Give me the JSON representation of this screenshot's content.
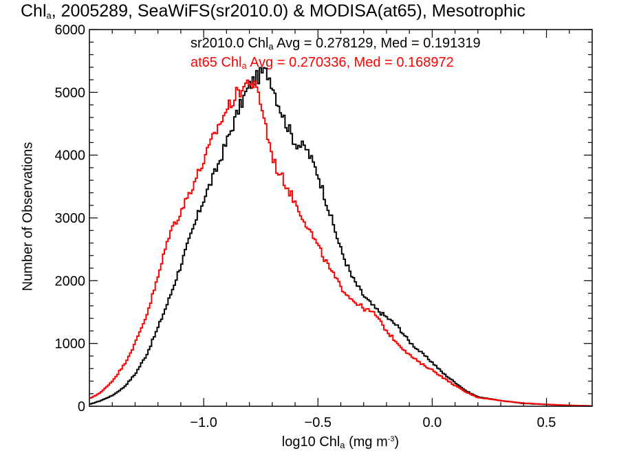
{
  "chart_data": {
    "type": "line",
    "title_parts": [
      "Chl",
      "a",
      ", 2005289, SeaWiFS(sr2010.0) & MODISA(at65), Mesotrophic"
    ],
    "xlabel_parts": [
      "log10 Chl",
      "a",
      " (mg m",
      "-3",
      ")"
    ],
    "ylabel": "Number of Observations",
    "xlim": [
      -1.5,
      0.7
    ],
    "ylim": [
      0,
      6000
    ],
    "x_ticks": [
      -1.0,
      -0.5,
      0.0,
      0.5
    ],
    "x_tick_labels": [
      "−1.0",
      "−0.5",
      "0.0",
      "0.5"
    ],
    "y_ticks": [
      0,
      1000,
      2000,
      3000,
      4000,
      5000,
      6000
    ],
    "y_tick_labels": [
      "0",
      "1000",
      "2000",
      "3000",
      "4000",
      "5000",
      "6000"
    ],
    "step": true,
    "grid": false,
    "x": [
      -1.5,
      -1.45,
      -1.4,
      -1.35,
      -1.3,
      -1.25,
      -1.2,
      -1.15,
      -1.1,
      -1.05,
      -1.0,
      -0.95,
      -0.9,
      -0.85,
      -0.82,
      -0.8,
      -0.78,
      -0.76,
      -0.74,
      -0.72,
      -0.7,
      -0.68,
      -0.65,
      -0.6,
      -0.55,
      -0.5,
      -0.45,
      -0.4,
      -0.35,
      -0.3,
      -0.25,
      -0.2,
      -0.15,
      -0.1,
      -0.05,
      0.0,
      0.05,
      0.1,
      0.15,
      0.2,
      0.3,
      0.4,
      0.5,
      0.6,
      0.7
    ],
    "series": [
      {
        "name_parts": [
          "sr2010.0 Chl",
          "a",
          " Avg = 0.278129, Med = 0.191319"
        ],
        "color": "#000000",
        "values": [
          30,
          90,
          170,
          300,
          510,
          820,
          1250,
          1720,
          2250,
          2780,
          3300,
          3720,
          4200,
          4700,
          4950,
          5100,
          5200,
          5250,
          5330,
          5300,
          5150,
          4900,
          4600,
          4200,
          4100,
          3700,
          3100,
          2500,
          2050,
          1760,
          1560,
          1420,
          1270,
          1030,
          860,
          700,
          520,
          380,
          240,
          150,
          90,
          45,
          28,
          12,
          5
        ]
      },
      {
        "name_parts": [
          "at65 Chl",
          "a",
          " Avg = 0.270336, Med = 0.168972"
        ],
        "color": "#ff0000",
        "values": [
          120,
          220,
          400,
          650,
          1000,
          1450,
          2050,
          2750,
          3100,
          3500,
          3900,
          4350,
          4720,
          5000,
          5100,
          5200,
          5100,
          4950,
          4700,
          4300,
          4000,
          3780,
          3600,
          3250,
          2900,
          2550,
          2200,
          1900,
          1700,
          1560,
          1470,
          1200,
          1000,
          820,
          680,
          580,
          450,
          330,
          220,
          140,
          90,
          50,
          30,
          15,
          5
        ]
      }
    ]
  }
}
